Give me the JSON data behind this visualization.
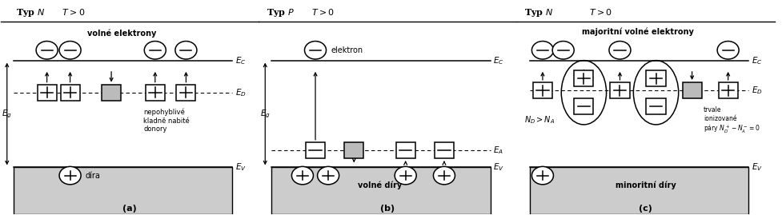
{
  "bg_color": "#ffffff",
  "band_color": "#cccccc",
  "titles": [
    "Typ $N$      $T > 0$",
    "Typ $P$      $T > 0$",
    "Typ $N$            $T > 0$"
  ],
  "labels": [
    "(a)",
    "(b)",
    "(c)"
  ],
  "Ec": 0.72,
  "Ed_a": 0.57,
  "Ev_a": 0.22,
  "Ec_b": 0.72,
  "Ea_b": 0.3,
  "Ev_b": 0.22,
  "Ec_c": 0.72,
  "Ed_c": 0.58,
  "Ev_c": 0.22
}
